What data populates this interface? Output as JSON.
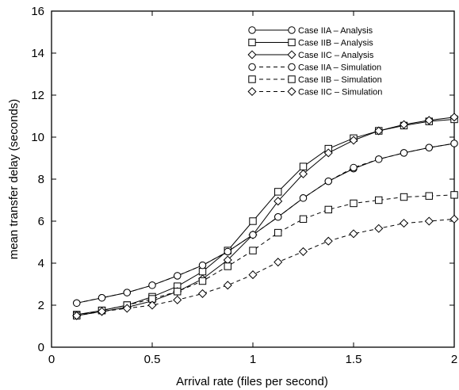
{
  "chart_data": {
    "type": "line",
    "title": "",
    "xlabel": "Arrival rate (files per second)",
    "ylabel": "mean transfer delay (seconds)",
    "xlim": [
      0,
      2
    ],
    "ylim": [
      0,
      16
    ],
    "x_ticks": [
      "0",
      "0.5",
      "1",
      "1.5",
      "2"
    ],
    "y_ticks": [
      "0",
      "2",
      "4",
      "6",
      "8",
      "10",
      "12",
      "14",
      "16"
    ],
    "grid": false,
    "legend_position": "top-right",
    "x": [
      0.125,
      0.25,
      0.375,
      0.5,
      0.625,
      0.75,
      0.875,
      1.0,
      1.125,
      1.25,
      1.375,
      1.5,
      1.625,
      1.75,
      1.875,
      2.0
    ],
    "series": [
      {
        "name": "Case IIA – Analysis",
        "marker": "circle",
        "line": "solid",
        "values": [
          2.1,
          2.35,
          2.6,
          2.95,
          3.4,
          3.9,
          4.55,
          5.35,
          6.2,
          7.1,
          7.9,
          8.5,
          8.95,
          9.25,
          9.5,
          9.7
        ]
      },
      {
        "name": "Case IIB – Analysis",
        "marker": "square",
        "line": "solid",
        "values": [
          1.55,
          1.75,
          2.0,
          2.4,
          2.9,
          3.6,
          4.6,
          6.0,
          7.4,
          8.6,
          9.45,
          9.95,
          10.3,
          10.55,
          10.75,
          10.85
        ]
      },
      {
        "name": "Case IIC – Analysis",
        "marker": "diamond",
        "line": "solid",
        "values": [
          1.5,
          1.7,
          1.9,
          2.2,
          2.65,
          3.25,
          4.15,
          5.35,
          6.95,
          8.25,
          9.25,
          9.85,
          10.3,
          10.6,
          10.8,
          10.95
        ]
      },
      {
        "name": "Case IIA – Simulation",
        "marker": "circle",
        "line": "dashed",
        "values": [
          2.1,
          2.35,
          2.6,
          2.95,
          3.4,
          3.9,
          4.55,
          5.35,
          6.2,
          7.1,
          7.9,
          8.55,
          8.95,
          9.25,
          9.5,
          9.7
        ]
      },
      {
        "name": "Case IIB – Simulation",
        "marker": "square",
        "line": "dashed",
        "values": [
          1.5,
          1.75,
          2.0,
          2.3,
          2.65,
          3.15,
          3.85,
          4.6,
          5.45,
          6.1,
          6.55,
          6.85,
          7.0,
          7.15,
          7.2,
          7.25
        ]
      },
      {
        "name": "Case IIC – Simulation",
        "marker": "diamond",
        "line": "dashed",
        "values": [
          1.5,
          1.7,
          1.85,
          2.0,
          2.25,
          2.55,
          2.95,
          3.45,
          4.05,
          4.55,
          5.05,
          5.4,
          5.65,
          5.9,
          6.0,
          6.1
        ]
      }
    ]
  }
}
